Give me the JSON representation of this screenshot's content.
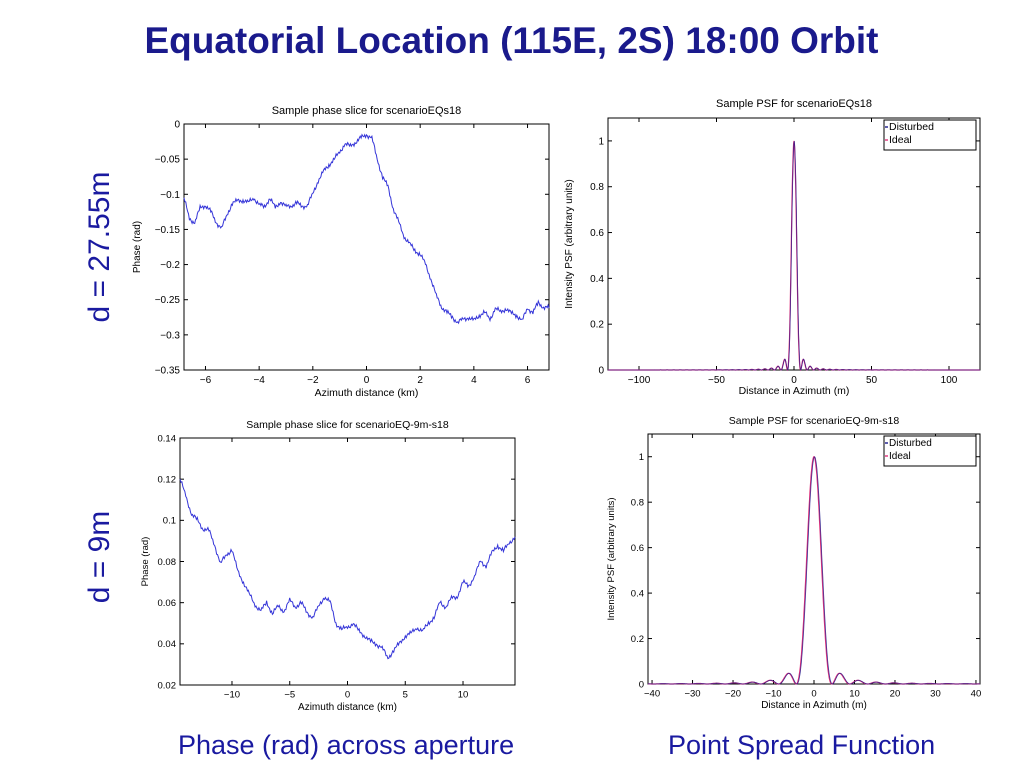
{
  "page": {
    "title": "Equatorial Location (115E, 2S) 18:00 Orbit",
    "row_labels": [
      "d  = 27.55m",
      "d  = 9m"
    ],
    "captions": [
      "Phase (rad) across aperture",
      "Point Spread Function"
    ]
  },
  "colors": {
    "title": "#1a1a8c",
    "phase_line": "#3535d8",
    "disturbed": "#1a1a8c",
    "ideal": "#e0307a"
  },
  "chart_data": [
    {
      "id": "phase1",
      "type": "line",
      "title": "Sample phase slice for scenarioEQs18",
      "xlabel": "Azimuth distance (km)",
      "ylabel": "Phase (rad)",
      "xlim": [
        -6.8,
        6.8
      ],
      "ylim": [
        -0.35,
        0
      ],
      "xticks": [
        -6,
        -4,
        -2,
        0,
        2,
        4,
        6
      ],
      "xticklabels": [
        "−6",
        "−4",
        "−2",
        "0",
        "2",
        "4",
        "6"
      ],
      "yticks": [
        0,
        -0.05,
        -0.1,
        -0.15,
        -0.2,
        -0.25,
        -0.3,
        -0.35
      ],
      "yticklabels": [
        "0",
        "−0.05",
        "−0.1",
        "−0.15",
        "−0.2",
        "−0.25",
        "−0.3",
        "−0.35"
      ],
      "series": [
        {
          "x": [
            -6.8,
            -6.6,
            -6.4,
            -6.2,
            -6.0,
            -5.8,
            -5.6,
            -5.4,
            -5.2,
            -5.0,
            -4.8,
            -4.6,
            -4.4,
            -4.2,
            -4.0,
            -3.8,
            -3.6,
            -3.4,
            -3.2,
            -3.0,
            -2.8,
            -2.6,
            -2.4,
            -2.2,
            -2.0,
            -1.8,
            -1.6,
            -1.4,
            -1.2,
            -1.0,
            -0.8,
            -0.6,
            -0.4,
            -0.2,
            0.0,
            0.2,
            0.4,
            0.6,
            0.8,
            1.0,
            1.2,
            1.4,
            1.6,
            1.8,
            2.0,
            2.2,
            2.4,
            2.6,
            2.8,
            3.0,
            3.2,
            3.4,
            3.6,
            3.8,
            4.0,
            4.2,
            4.4,
            4.6,
            4.8,
            5.0,
            5.2,
            5.4,
            5.6,
            5.8,
            6.0,
            6.2,
            6.4,
            6.6,
            6.8
          ],
          "y": [
            -0.105,
            -0.135,
            -0.14,
            -0.12,
            -0.115,
            -0.125,
            -0.14,
            -0.148,
            -0.13,
            -0.112,
            -0.11,
            -0.108,
            -0.112,
            -0.105,
            -0.115,
            -0.118,
            -0.105,
            -0.12,
            -0.11,
            -0.118,
            -0.116,
            -0.112,
            -0.118,
            -0.115,
            -0.1,
            -0.08,
            -0.068,
            -0.058,
            -0.05,
            -0.04,
            -0.028,
            -0.032,
            -0.025,
            -0.02,
            -0.015,
            -0.02,
            -0.05,
            -0.075,
            -0.09,
            -0.12,
            -0.14,
            -0.16,
            -0.17,
            -0.18,
            -0.185,
            -0.2,
            -0.22,
            -0.245,
            -0.26,
            -0.268,
            -0.275,
            -0.282,
            -0.278,
            -0.275,
            -0.28,
            -0.272,
            -0.268,
            -0.278,
            -0.262,
            -0.268,
            -0.262,
            -0.27,
            -0.272,
            -0.28,
            -0.262,
            -0.268,
            -0.255,
            -0.26,
            -0.262
          ]
        }
      ]
    },
    {
      "id": "psf1",
      "type": "line",
      "title": "Sample PSF for scenarioEQs18",
      "xlabel": "Distance in Azimuth (m)",
      "ylabel": "Intensity PSF (arbitrary units)",
      "xlim": [
        -120,
        120
      ],
      "ylim": [
        0,
        1.1
      ],
      "xticks": [
        -100,
        -50,
        0,
        50,
        100
      ],
      "xticklabels": [
        "−100",
        "−50",
        "0",
        "50",
        "100"
      ],
      "yticks": [
        0,
        0.2,
        0.4,
        0.6,
        0.8,
        1
      ],
      "yticklabels": [
        "0",
        "0.2",
        "0.4",
        "0.6",
        "0.8",
        "1"
      ],
      "legend": [
        "Disturbed",
        "Ideal"
      ],
      "psf_scale_m": 4.2
    },
    {
      "id": "phase2",
      "type": "line",
      "title": "Sample phase slice for scenarioEQ-9m-s18",
      "xlabel": "Azimuth distance (km)",
      "ylabel": "Phase (rad)",
      "xlim": [
        -14.5,
        14.5
      ],
      "ylim": [
        0.02,
        0.14
      ],
      "xticks": [
        -10,
        -5,
        0,
        5,
        10
      ],
      "xticklabels": [
        "−10",
        "−5",
        "0",
        "5",
        "10"
      ],
      "yticks": [
        0.02,
        0.04,
        0.06,
        0.08,
        0.1,
        0.12,
        0.14
      ],
      "yticklabels": [
        "0.02",
        "0.04",
        "0.06",
        "0.08",
        "0.1",
        "0.12",
        "0.14"
      ],
      "series": [
        {
          "x": [
            -14.5,
            -14.0,
            -13.5,
            -13.0,
            -12.5,
            -12.0,
            -11.5,
            -11.0,
            -10.5,
            -10.0,
            -9.5,
            -9.0,
            -8.5,
            -8.0,
            -7.5,
            -7.0,
            -6.5,
            -6.0,
            -5.5,
            -5.0,
            -4.5,
            -4.0,
            -3.5,
            -3.0,
            -2.5,
            -2.0,
            -1.5,
            -1.0,
            -0.5,
            0.0,
            0.5,
            1.0,
            1.5,
            2.0,
            2.5,
            3.0,
            3.5,
            4.0,
            4.5,
            5.0,
            5.5,
            6.0,
            6.5,
            7.0,
            7.5,
            8.0,
            8.5,
            9.0,
            9.5,
            10.0,
            10.5,
            11.0,
            11.5,
            12.0,
            12.5,
            13.0,
            13.5,
            14.0,
            14.5
          ],
          "y": [
            0.12,
            0.112,
            0.103,
            0.1,
            0.096,
            0.095,
            0.088,
            0.079,
            0.083,
            0.086,
            0.075,
            0.07,
            0.064,
            0.059,
            0.056,
            0.06,
            0.055,
            0.058,
            0.056,
            0.061,
            0.058,
            0.06,
            0.055,
            0.053,
            0.058,
            0.063,
            0.06,
            0.05,
            0.047,
            0.048,
            0.05,
            0.046,
            0.044,
            0.041,
            0.04,
            0.038,
            0.033,
            0.037,
            0.04,
            0.044,
            0.045,
            0.048,
            0.046,
            0.05,
            0.053,
            0.06,
            0.058,
            0.062,
            0.063,
            0.07,
            0.068,
            0.073,
            0.08,
            0.078,
            0.084,
            0.088,
            0.085,
            0.089,
            0.092
          ]
        }
      ]
    },
    {
      "id": "psf2",
      "type": "line",
      "title": "Sample PSF for scenarioEQ-9m-s18",
      "xlabel": "Distance in Azimuth (m)",
      "ylabel": "Intensity PSF (arbitrary units)",
      "xlim": [
        -41,
        41
      ],
      "ylim": [
        0,
        1.1
      ],
      "xticks": [
        -40,
        -30,
        -20,
        -10,
        0,
        10,
        20,
        30,
        40
      ],
      "xticklabels": [
        "−40",
        "−30",
        "−20",
        "−10",
        "0",
        "10",
        "20",
        "30",
        "40"
      ],
      "yticks": [
        0,
        0.2,
        0.4,
        0.6,
        0.8,
        1
      ],
      "yticklabels": [
        "0",
        "0.2",
        "0.4",
        "0.6",
        "0.8",
        "1"
      ],
      "legend": [
        "Disturbed",
        "Ideal"
      ],
      "psf_scale_m": 4.4
    }
  ]
}
